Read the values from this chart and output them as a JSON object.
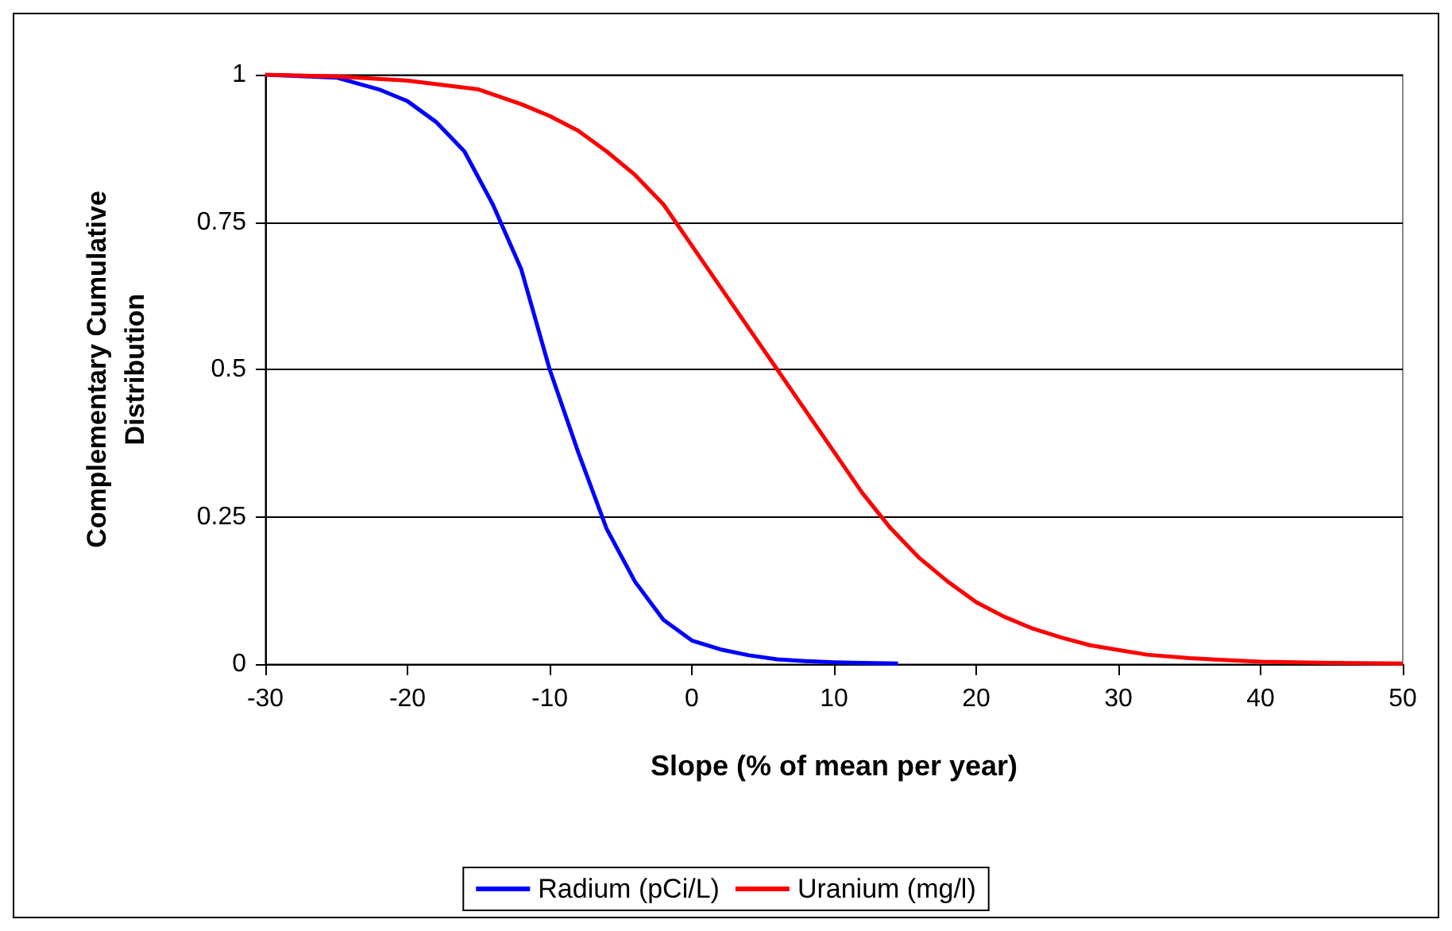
{
  "chart_data": {
    "type": "line",
    "xlabel": "Slope (% of mean per year)",
    "ylabel": "Complementary Cumulative Distribution",
    "xlim": [
      -30,
      50
    ],
    "xticks": [
      -30,
      -20,
      -10,
      0,
      10,
      20,
      30,
      40,
      50
    ],
    "ylim": [
      0,
      1
    ],
    "yticks": [
      0,
      0.25,
      0.5,
      0.75,
      1
    ],
    "grid": "y",
    "legend": "bottom",
    "marker": "none",
    "line_style": "solid",
    "series": [
      {
        "name": "Radium (pCi/L)",
        "color": "#0000ff",
        "x": [
          -30,
          -25,
          -22,
          -20,
          -18,
          -16,
          -14,
          -12,
          -10,
          -8,
          -6,
          -4,
          -2,
          0,
          2,
          4,
          6,
          8,
          10,
          12,
          14.5
        ],
        "values": [
          1,
          0.995,
          0.975,
          0.955,
          0.92,
          0.87,
          0.78,
          0.67,
          0.5,
          0.36,
          0.23,
          0.14,
          0.075,
          0.04,
          0.025,
          0.015,
          0.008,
          0.005,
          0.003,
          0.002,
          0.001
        ]
      },
      {
        "name": "Uranium (mg/l)",
        "color": "#ff0000",
        "x": [
          -30,
          -25,
          -20,
          -15,
          -12,
          -10,
          -8,
          -6,
          -4,
          -2,
          0,
          2,
          4,
          6,
          8,
          10,
          12,
          14,
          16,
          18,
          20,
          22,
          24,
          26,
          28,
          30,
          32,
          35,
          40,
          45,
          50
        ],
        "values": [
          1,
          0.997,
          0.99,
          0.975,
          0.95,
          0.93,
          0.905,
          0.87,
          0.83,
          0.78,
          0.71,
          0.64,
          0.57,
          0.5,
          0.43,
          0.36,
          0.29,
          0.23,
          0.18,
          0.14,
          0.105,
          0.08,
          0.06,
          0.045,
          0.032,
          0.024,
          0.016,
          0.01,
          0.004,
          0.002,
          0.001
        ]
      }
    ]
  }
}
